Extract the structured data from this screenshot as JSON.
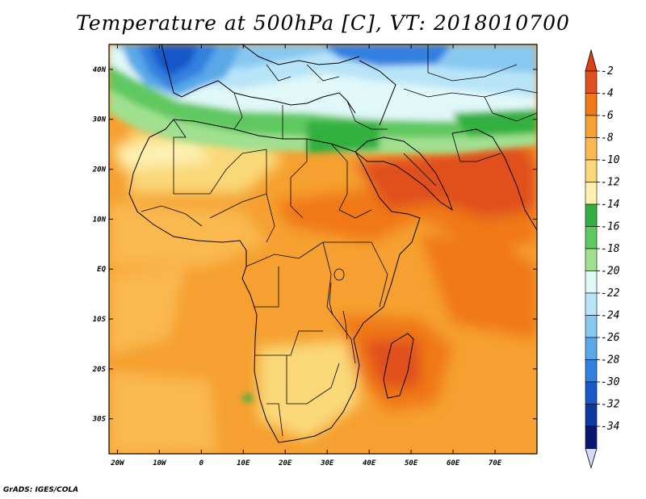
{
  "title": "Temperature at 500hPa [C], VT: 2018010700",
  "footer": "GrADS: IGES/COLA",
  "map": {
    "lon_range": [
      -22,
      80
    ],
    "lat_range": [
      -37,
      45
    ],
    "lat_ticks": [
      {
        "value": 40,
        "label": "40N"
      },
      {
        "value": 30,
        "label": "30N"
      },
      {
        "value": 20,
        "label": "20N"
      },
      {
        "value": 10,
        "label": "10N"
      },
      {
        "value": 0,
        "label": "EQ"
      },
      {
        "value": -10,
        "label": "10S"
      },
      {
        "value": -20,
        "label": "20S"
      },
      {
        "value": -30,
        "label": "30S"
      }
    ],
    "lon_ticks": [
      {
        "value": -20,
        "label": "20W"
      },
      {
        "value": -10,
        "label": "10W"
      },
      {
        "value": 0,
        "label": "0"
      },
      {
        "value": 10,
        "label": "10E"
      },
      {
        "value": 20,
        "label": "20E"
      },
      {
        "value": 30,
        "label": "30E"
      },
      {
        "value": 40,
        "label": "40E"
      },
      {
        "value": 50,
        "label": "50E"
      },
      {
        "value": 60,
        "label": "60E"
      },
      {
        "value": 70,
        "label": "70E"
      }
    ]
  },
  "colorbar": {
    "levels": [
      {
        "label": "-2",
        "color": "#e0501e"
      },
      {
        "label": "-4",
        "color": "#f07818"
      },
      {
        "label": "-6",
        "color": "#f5a030"
      },
      {
        "label": "-8",
        "color": "#fab850"
      },
      {
        "label": "-10",
        "color": "#fad878"
      },
      {
        "label": "-12",
        "color": "#fdf0b0"
      },
      {
        "label": "-14",
        "color": "#30b040"
      },
      {
        "label": "-16",
        "color": "#60c860"
      },
      {
        "label": "-18",
        "color": "#a0e090"
      },
      {
        "label": "-20",
        "color": "#e0f8f8"
      },
      {
        "label": "-22",
        "color": "#b8e4f8"
      },
      {
        "label": "-24",
        "color": "#88c8f0"
      },
      {
        "label": "-26",
        "color": "#5aa8e8"
      },
      {
        "label": "-28",
        "color": "#3080e0"
      },
      {
        "label": "-30",
        "color": "#1858c8"
      },
      {
        "label": "-32",
        "color": "#0c38a0"
      },
      {
        "label": "-34",
        "color": "#081870"
      }
    ],
    "top_arrow_color": "#e04010",
    "bottom_arrow_color": "#d8d8f8"
  }
}
